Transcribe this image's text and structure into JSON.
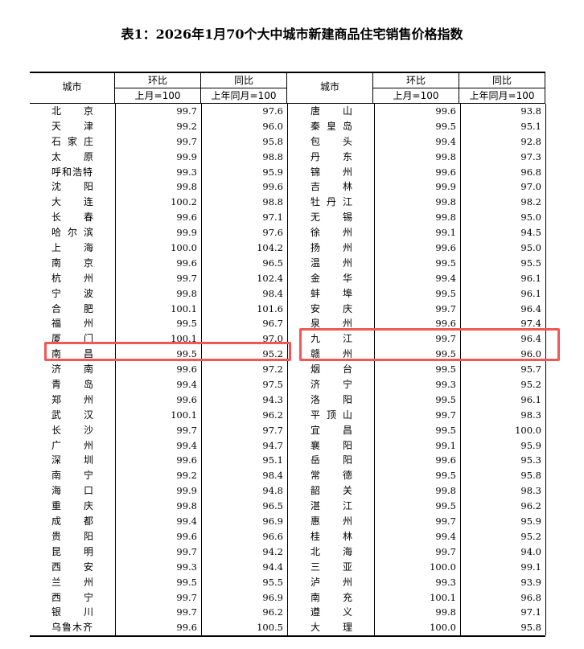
{
  "title": "表1：2026年1月70个大中城市新建商品住宅销售价格指数",
  "header": {
    "city": "城市",
    "mom": "环比",
    "mom_base": "上月=100",
    "yoy": "同比",
    "yoy_base": "上年同月=100"
  },
  "highlight_color": "#f25656",
  "highlighted_cities": [
    "南昌",
    "九江",
    "赣州"
  ],
  "left_rows": [
    [
      "北京",
      "99.7",
      "97.6"
    ],
    [
      "天津",
      "99.2",
      "96.0"
    ],
    [
      "石家庄",
      "99.7",
      "95.8"
    ],
    [
      "太原",
      "99.9",
      "98.8"
    ],
    [
      "呼和浩特",
      "99.3",
      "95.9"
    ],
    [
      "沈阳",
      "99.8",
      "99.6"
    ],
    [
      "大连",
      "100.2",
      "98.8"
    ],
    [
      "长春",
      "99.6",
      "97.1"
    ],
    [
      "哈尔滨",
      "99.9",
      "97.6"
    ],
    [
      "上海",
      "100.0",
      "104.2"
    ],
    [
      "南京",
      "99.6",
      "96.5"
    ],
    [
      "杭州",
      "99.7",
      "102.4"
    ],
    [
      "宁波",
      "99.8",
      "98.4"
    ],
    [
      "合肥",
      "100.1",
      "101.6"
    ],
    [
      "福州",
      "99.5",
      "96.7"
    ],
    [
      "厦门",
      "100.1",
      "97.0"
    ],
    [
      "南昌",
      "99.5",
      "95.2"
    ],
    [
      "济南",
      "99.6",
      "97.2"
    ],
    [
      "青岛",
      "99.4",
      "97.5"
    ],
    [
      "郑州",
      "99.6",
      "94.3"
    ],
    [
      "武汉",
      "100.1",
      "96.2"
    ],
    [
      "长沙",
      "99.7",
      "97.7"
    ],
    [
      "广州",
      "99.4",
      "94.7"
    ],
    [
      "深圳",
      "99.6",
      "95.1"
    ],
    [
      "南宁",
      "99.2",
      "98.4"
    ],
    [
      "海口",
      "99.9",
      "94.8"
    ],
    [
      "重庆",
      "99.8",
      "96.5"
    ],
    [
      "成都",
      "99.4",
      "96.9"
    ],
    [
      "贵阳",
      "99.6",
      "96.6"
    ],
    [
      "昆明",
      "99.7",
      "94.2"
    ],
    [
      "西安",
      "99.3",
      "94.4"
    ],
    [
      "兰州",
      "99.5",
      "95.5"
    ],
    [
      "西宁",
      "99.7",
      "96.9"
    ],
    [
      "银川",
      "99.7",
      "96.2"
    ],
    [
      "乌鲁木齐",
      "99.6",
      "100.5"
    ]
  ],
  "right_rows": [
    [
      "唐山",
      "99.6",
      "93.8"
    ],
    [
      "秦皇岛",
      "99.5",
      "95.1"
    ],
    [
      "包头",
      "99.4",
      "92.8"
    ],
    [
      "丹东",
      "99.8",
      "97.3"
    ],
    [
      "锦州",
      "99.6",
      "96.8"
    ],
    [
      "吉林",
      "99.9",
      "97.0"
    ],
    [
      "牡丹江",
      "99.8",
      "98.2"
    ],
    [
      "无锡",
      "99.8",
      "95.0"
    ],
    [
      "徐州",
      "99.1",
      "94.5"
    ],
    [
      "扬州",
      "99.6",
      "95.0"
    ],
    [
      "温州",
      "99.5",
      "95.5"
    ],
    [
      "金华",
      "99.4",
      "96.1"
    ],
    [
      "蚌埠",
      "99.5",
      "96.1"
    ],
    [
      "安庆",
      "99.7",
      "96.4"
    ],
    [
      "泉州",
      "99.6",
      "97.4"
    ],
    [
      "九江",
      "99.7",
      "96.4"
    ],
    [
      "赣州",
      "99.5",
      "96.0"
    ],
    [
      "烟台",
      "99.5",
      "95.7"
    ],
    [
      "济宁",
      "99.3",
      "95.2"
    ],
    [
      "洛阳",
      "99.5",
      "96.1"
    ],
    [
      "平顶山",
      "99.7",
      "98.3"
    ],
    [
      "宜昌",
      "99.5",
      "100.0"
    ],
    [
      "襄阳",
      "99.1",
      "95.9"
    ],
    [
      "岳阳",
      "99.6",
      "95.3"
    ],
    [
      "常德",
      "99.5",
      "95.8"
    ],
    [
      "韶关",
      "99.8",
      "98.3"
    ],
    [
      "湛江",
      "99.5",
      "96.2"
    ],
    [
      "惠州",
      "99.7",
      "95.9"
    ],
    [
      "桂林",
      "99.4",
      "95.2"
    ],
    [
      "北海",
      "99.7",
      "94.0"
    ],
    [
      "三亚",
      "100.0",
      "99.1"
    ],
    [
      "泸州",
      "99.3",
      "93.9"
    ],
    [
      "南充",
      "100.1",
      "96.8"
    ],
    [
      "遵义",
      "99.8",
      "97.1"
    ],
    [
      "大理",
      "100.0",
      "95.8"
    ]
  ]
}
